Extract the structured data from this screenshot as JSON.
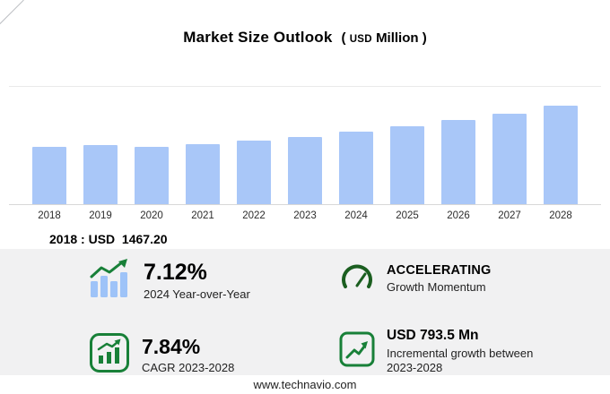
{
  "title": {
    "text": "Market Size Outlook",
    "unit_open": "(",
    "unit_currency": "USD",
    "unit_label": "Million",
    "unit_close": ")"
  },
  "chart_data": {
    "type": "bar",
    "title": "Market Size Outlook (USD Million)",
    "categories": [
      "2018",
      "2019",
      "2020",
      "2021",
      "2022",
      "2023",
      "2024",
      "2025",
      "2026",
      "2027",
      "2028"
    ],
    "values": [
      1467.2,
      1508,
      1464,
      1532,
      1624,
      1731,
      1854,
      1999,
      2156,
      2325,
      2524.7
    ],
    "unit": "USD Million",
    "xlabel": "",
    "ylabel": "",
    "ylim": [
      0,
      2600
    ],
    "grid": "top-and-baseline-only",
    "legend": "none",
    "bar_color": "#a9c7f8"
  },
  "annotation": {
    "text": "2018 : USD  1467.20"
  },
  "stats": [
    {
      "icon": "bar-chart-growth-icon",
      "value": "7.12%",
      "label": "2024 Year-over-Year"
    },
    {
      "icon": "speedometer-icon",
      "value": "ACCELERATING",
      "label": "Growth Momentum"
    },
    {
      "icon": "cagr-bars-icon",
      "value": "7.84%",
      "label": "CAGR 2023-2028"
    },
    {
      "icon": "incremental-growth-icon",
      "value": "USD 793.5 Mn",
      "label": "Incremental growth between 2023-2028"
    }
  ],
  "footer": {
    "url": "www.technavio.com"
  },
  "colors": {
    "bar": "#a9c7f8",
    "accent_green": "#188038",
    "gauge_green": "#1b5e20",
    "panel": "#f1f1f2"
  }
}
